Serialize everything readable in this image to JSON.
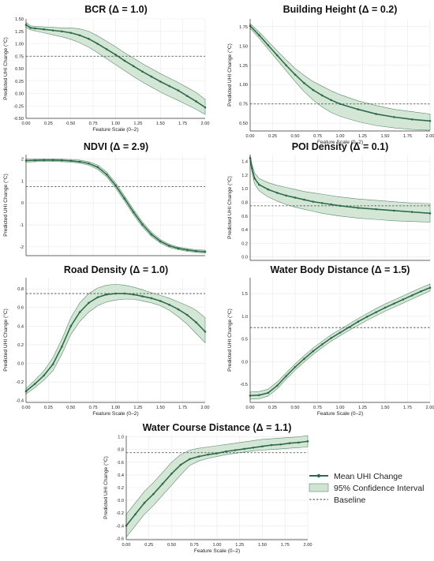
{
  "figure": {
    "colors": {
      "line": "#2e6b4a",
      "band_fill": "#cfe4d3",
      "band_edge": "#5b8a6c",
      "baseline": "#444444",
      "grid": "#e9e9e9"
    }
  },
  "legend": {
    "mean_label": "Mean UHI Change",
    "ci_label": "95% Confidence Interval",
    "baseline_label": "Baseline",
    "placement": "right of bottom panel"
  },
  "chart_data": [
    {
      "type": "line",
      "title": "BCR (Δ = 1.0)",
      "xlabel": "Feature Scale (0–2)",
      "ylabel": "Predicted UHI Change (°C)",
      "xlim": [
        0,
        2
      ],
      "ylim": [
        -0.5,
        1.5
      ],
      "xticks": [
        "0.00",
        "0.25",
        "0.50",
        "0.75",
        "1.00",
        "1.25",
        "1.50",
        "1.75",
        "2.00"
      ],
      "yticks": [
        "-0.50",
        "-0.25",
        "0.00",
        "0.25",
        "0.50",
        "0.75",
        "1.00",
        "1.25",
        "1.50"
      ],
      "baseline": 0.75,
      "x": [
        0,
        0.05,
        0.1,
        0.2,
        0.3,
        0.4,
        0.5,
        0.6,
        0.7,
        0.8,
        0.9,
        1.0,
        1.1,
        1.2,
        1.3,
        1.4,
        1.5,
        1.6,
        1.7,
        1.8,
        1.9,
        2.0
      ],
      "mean": [
        1.38,
        1.32,
        1.31,
        1.29,
        1.27,
        1.25,
        1.22,
        1.17,
        1.1,
        1.0,
        0.89,
        0.78,
        0.66,
        0.55,
        0.44,
        0.34,
        0.24,
        0.15,
        0.06,
        -0.05,
        -0.16,
        -0.28
      ],
      "ci_lower": [
        1.33,
        1.28,
        1.26,
        1.22,
        1.18,
        1.14,
        1.09,
        1.02,
        0.93,
        0.82,
        0.7,
        0.58,
        0.46,
        0.34,
        0.23,
        0.13,
        0.03,
        -0.06,
        -0.14,
        -0.23,
        -0.32,
        -0.42
      ],
      "ci_upper": [
        1.43,
        1.36,
        1.35,
        1.34,
        1.33,
        1.32,
        1.32,
        1.3,
        1.25,
        1.16,
        1.05,
        0.94,
        0.82,
        0.71,
        0.6,
        0.5,
        0.4,
        0.31,
        0.22,
        0.12,
        0.02,
        -0.12
      ],
      "grid": true
    },
    {
      "type": "line",
      "title": "Building Height (Δ = 0.2)",
      "xlabel": "Feature Scale (0–2)",
      "ylabel": "Predicted UHI Change (°C)",
      "xlim": [
        0,
        2
      ],
      "ylim": [
        0.4,
        1.85
      ],
      "xticks": [
        "0.00",
        "0.25",
        "0.50",
        "0.75",
        "1.00",
        "1.25",
        "1.50",
        "1.75",
        "2.00"
      ],
      "yticks": [
        "0.50",
        "0.75",
        "1.00",
        "1.25",
        "1.50",
        "1.75"
      ],
      "baseline": 0.75,
      "x": [
        0,
        0.1,
        0.2,
        0.3,
        0.4,
        0.5,
        0.6,
        0.7,
        0.8,
        0.9,
        1.0,
        1.2,
        1.4,
        1.6,
        1.8,
        2.0
      ],
      "mean": [
        1.76,
        1.64,
        1.51,
        1.38,
        1.25,
        1.13,
        1.02,
        0.93,
        0.86,
        0.8,
        0.75,
        0.68,
        0.62,
        0.58,
        0.55,
        0.53
      ],
      "ci_lower": [
        1.73,
        1.6,
        1.46,
        1.32,
        1.18,
        1.04,
        0.91,
        0.8,
        0.71,
        0.64,
        0.59,
        0.52,
        0.47,
        0.44,
        0.42,
        0.41
      ],
      "ci_upper": [
        1.79,
        1.68,
        1.56,
        1.44,
        1.32,
        1.21,
        1.12,
        1.04,
        0.98,
        0.92,
        0.87,
        0.79,
        0.73,
        0.68,
        0.65,
        0.62
      ],
      "grid": true
    },
    {
      "type": "line",
      "title": "NDVI (Δ = 2.9)",
      "xlabel": "",
      "ylabel": "Predicted UHI Change (°C)",
      "xlim": [
        0,
        2
      ],
      "ylim": [
        -2.4,
        2.2
      ],
      "xticks": [],
      "yticks": [
        "-2",
        "-1",
        "0",
        "1",
        "2"
      ],
      "baseline": 0.75,
      "x": [
        0,
        0.1,
        0.2,
        0.3,
        0.4,
        0.5,
        0.6,
        0.7,
        0.8,
        0.9,
        1.0,
        1.1,
        1.2,
        1.3,
        1.4,
        1.5,
        1.6,
        1.7,
        1.8,
        1.9,
        2.0
      ],
      "mean": [
        1.93,
        1.94,
        1.95,
        1.95,
        1.94,
        1.92,
        1.88,
        1.8,
        1.63,
        1.3,
        0.8,
        0.2,
        -0.42,
        -0.98,
        -1.43,
        -1.75,
        -1.95,
        -2.07,
        -2.14,
        -2.19,
        -2.22
      ],
      "ci_lower": [
        1.86,
        1.88,
        1.89,
        1.89,
        1.88,
        1.86,
        1.81,
        1.72,
        1.53,
        1.19,
        0.68,
        0.08,
        -0.54,
        -1.09,
        -1.53,
        -1.83,
        -2.02,
        -2.13,
        -2.2,
        -2.25,
        -2.29
      ],
      "ci_upper": [
        2.0,
        2.0,
        2.01,
        2.01,
        2.0,
        1.98,
        1.95,
        1.88,
        1.73,
        1.41,
        0.92,
        0.32,
        -0.3,
        -0.87,
        -1.33,
        -1.67,
        -1.88,
        -2.01,
        -2.08,
        -2.13,
        -2.15
      ],
      "grid": true
    },
    {
      "type": "line",
      "title": "POI Density (Δ = 0.1)",
      "xlabel": "",
      "ylabel": "Predicted UHI Change (°C)",
      "xlim": [
        0,
        2
      ],
      "ylim": [
        -0.05,
        1.5
      ],
      "xticks": [],
      "yticks": [
        "0.0",
        "0.2",
        "0.4",
        "0.6",
        "0.8",
        "1.0",
        "1.2",
        "1.4"
      ],
      "baseline": 0.75,
      "x": [
        0,
        0.02,
        0.05,
        0.1,
        0.2,
        0.3,
        0.4,
        0.5,
        0.6,
        0.7,
        0.8,
        0.9,
        1.0,
        1.2,
        1.4,
        1.6,
        1.8,
        2.0
      ],
      "mean": [
        1.45,
        1.3,
        1.15,
        1.06,
        0.99,
        0.94,
        0.9,
        0.87,
        0.84,
        0.81,
        0.79,
        0.77,
        0.75,
        0.72,
        0.7,
        0.68,
        0.66,
        0.64
      ],
      "ci_lower": [
        1.4,
        1.24,
        1.07,
        0.97,
        0.88,
        0.82,
        0.77,
        0.73,
        0.7,
        0.67,
        0.64,
        0.62,
        0.6,
        0.57,
        0.55,
        0.53,
        0.52,
        0.51
      ],
      "ci_upper": [
        1.5,
        1.36,
        1.23,
        1.15,
        1.09,
        1.05,
        1.02,
        0.99,
        0.96,
        0.94,
        0.92,
        0.9,
        0.88,
        0.85,
        0.83,
        0.81,
        0.79,
        0.78
      ],
      "grid": true
    },
    {
      "type": "line",
      "title": "Road Density (Δ = 1.0)",
      "xlabel": "Feature Scale (0–2)",
      "ylabel": "Predicted UHI Change (°C)",
      "xlim": [
        0,
        2
      ],
      "ylim": [
        -0.42,
        0.92
      ],
      "xticks": [
        "0.00",
        "0.25",
        "0.50",
        "0.75",
        "1.00",
        "1.25",
        "1.50",
        "1.75",
        "2.00"
      ],
      "yticks": [
        "-0.4",
        "-0.2",
        "0.0",
        "0.2",
        "0.4",
        "0.6",
        "0.8"
      ],
      "baseline": 0.75,
      "x": [
        0,
        0.1,
        0.2,
        0.3,
        0.4,
        0.5,
        0.6,
        0.7,
        0.8,
        0.9,
        1.0,
        1.1,
        1.2,
        1.3,
        1.4,
        1.5,
        1.6,
        1.7,
        1.8,
        1.9,
        2.0
      ],
      "mean": [
        -0.3,
        -0.22,
        -0.13,
        -0.01,
        0.18,
        0.4,
        0.55,
        0.65,
        0.71,
        0.74,
        0.75,
        0.75,
        0.74,
        0.72,
        0.7,
        0.67,
        0.63,
        0.58,
        0.52,
        0.44,
        0.34
      ],
      "ci_lower": [
        -0.33,
        -0.26,
        -0.18,
        -0.08,
        0.1,
        0.31,
        0.45,
        0.55,
        0.62,
        0.66,
        0.68,
        0.69,
        0.69,
        0.67,
        0.65,
        0.62,
        0.57,
        0.5,
        0.42,
        0.32,
        0.22
      ],
      "ci_upper": [
        -0.27,
        -0.18,
        -0.08,
        0.06,
        0.26,
        0.49,
        0.65,
        0.75,
        0.81,
        0.84,
        0.85,
        0.84,
        0.82,
        0.79,
        0.76,
        0.73,
        0.7,
        0.66,
        0.62,
        0.57,
        0.49
      ],
      "grid": true
    },
    {
      "type": "line",
      "title": "Water Body Distance (Δ = 1.5)",
      "xlabel": "Feature Scale (0–2)",
      "ylabel": "Predicted UHI Change (°C)",
      "xlim": [
        0,
        2
      ],
      "ylim": [
        -0.9,
        1.85
      ],
      "xticks": [
        "0.00",
        "0.25",
        "0.50",
        "0.75",
        "1.00",
        "1.25",
        "1.50",
        "1.75",
        "2.00"
      ],
      "yticks": [
        "-0.5",
        "0.0",
        "0.5",
        "1.0",
        "1.5"
      ],
      "baseline": 0.75,
      "x": [
        0,
        0.1,
        0.2,
        0.3,
        0.4,
        0.5,
        0.6,
        0.7,
        0.8,
        0.9,
        1.0,
        1.1,
        1.2,
        1.3,
        1.4,
        1.5,
        1.6,
        1.7,
        1.8,
        1.9,
        2.0
      ],
      "mean": [
        -0.75,
        -0.74,
        -0.69,
        -0.53,
        -0.32,
        -0.12,
        0.06,
        0.23,
        0.38,
        0.52,
        0.64,
        0.76,
        0.88,
        0.99,
        1.09,
        1.19,
        1.28,
        1.37,
        1.46,
        1.55,
        1.63
      ],
      "ci_lower": [
        -0.83,
        -0.82,
        -0.76,
        -0.6,
        -0.39,
        -0.19,
        -0.01,
        0.16,
        0.31,
        0.45,
        0.57,
        0.69,
        0.8,
        0.91,
        1.01,
        1.11,
        1.2,
        1.29,
        1.38,
        1.47,
        1.56
      ],
      "ci_upper": [
        -0.67,
        -0.66,
        -0.61,
        -0.45,
        -0.25,
        -0.05,
        0.13,
        0.3,
        0.45,
        0.59,
        0.71,
        0.83,
        0.95,
        1.06,
        1.17,
        1.27,
        1.36,
        1.45,
        1.54,
        1.63,
        1.71
      ],
      "grid": true
    },
    {
      "type": "line",
      "title": "Water Course Distance (Δ = 1.1)",
      "xlabel": "Feature Scale (0–2)",
      "ylabel": "Predicted UHI Change (°C)",
      "xlim": [
        0,
        2
      ],
      "ylim": [
        -0.62,
        1.02
      ],
      "xticks": [
        "0.00",
        "0.25",
        "0.50",
        "0.75",
        "1.00",
        "1.25",
        "1.50",
        "1.75",
        "2.00"
      ],
      "yticks": [
        "-0.6",
        "-0.4",
        "-0.2",
        "0.0",
        "0.2",
        "0.4",
        "0.6",
        "0.8",
        "1.0"
      ],
      "baseline": 0.75,
      "x": [
        0,
        0.1,
        0.2,
        0.3,
        0.4,
        0.5,
        0.6,
        0.7,
        0.8,
        0.9,
        1.0,
        1.1,
        1.2,
        1.3,
        1.4,
        1.5,
        1.6,
        1.7,
        1.8,
        1.9,
        2.0
      ],
      "mean": [
        -0.4,
        -0.22,
        -0.04,
        0.1,
        0.26,
        0.42,
        0.56,
        0.65,
        0.69,
        0.72,
        0.74,
        0.77,
        0.79,
        0.81,
        0.83,
        0.85,
        0.87,
        0.88,
        0.9,
        0.91,
        0.93
      ],
      "ci_lower": [
        -0.58,
        -0.4,
        -0.22,
        -0.08,
        0.08,
        0.24,
        0.4,
        0.55,
        0.62,
        0.66,
        0.69,
        0.72,
        0.74,
        0.76,
        0.78,
        0.79,
        0.8,
        0.81,
        0.82,
        0.83,
        0.84
      ],
      "ci_upper": [
        -0.22,
        -0.04,
        0.14,
        0.28,
        0.44,
        0.6,
        0.72,
        0.79,
        0.82,
        0.84,
        0.86,
        0.88,
        0.9,
        0.92,
        0.94,
        0.96,
        0.97,
        0.98,
        0.99,
        1.0,
        1.02
      ],
      "grid": true
    }
  ]
}
